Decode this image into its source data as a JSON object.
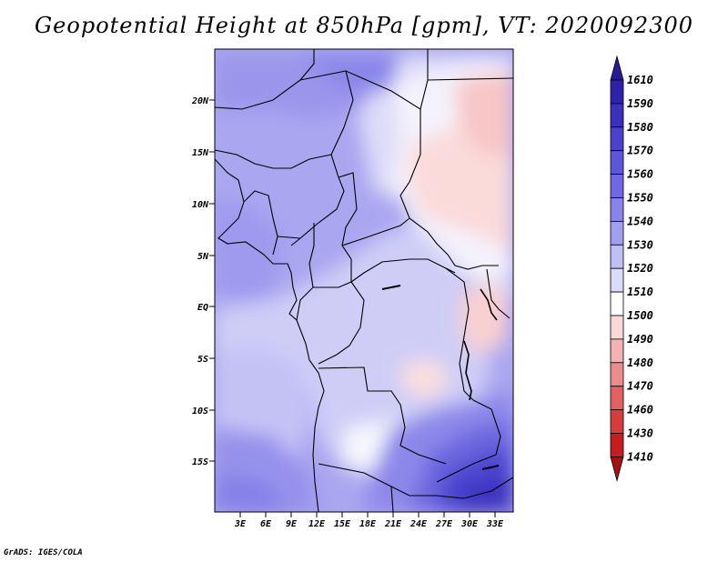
{
  "title": "Geopotential Height at 850hPa [gpm], VT: 2020092300",
  "credit": "GrADS: IGES/COLA",
  "map": {
    "lat_ticks": [
      "20N",
      "15N",
      "10N",
      "5N",
      "EQ",
      "5S",
      "10S",
      "15S"
    ],
    "lon_ticks": [
      "3E",
      "6E",
      "9E",
      "12E",
      "15E",
      "18E",
      "21E",
      "24E",
      "27E",
      "30E",
      "33E"
    ]
  },
  "colorbar": {
    "levels": [
      "1610",
      "1590",
      "1580",
      "1570",
      "1560",
      "1550",
      "1540",
      "1530",
      "1520",
      "1510",
      "1500",
      "1490",
      "1480",
      "1470",
      "1460",
      "1430",
      "1410"
    ],
    "colors": [
      "#2a1a96",
      "#2e22aa",
      "#3a30bc",
      "#4a42cc",
      "#5c56d8",
      "#7068e2",
      "#8882ea",
      "#a29ef0",
      "#c0bef4",
      "#dcdcf8",
      "#ffffff",
      "#fbd8d8",
      "#f4b2b2",
      "#ec8c8c",
      "#e26262",
      "#d63c3c",
      "#c41e1e",
      "#a81010"
    ]
  }
}
